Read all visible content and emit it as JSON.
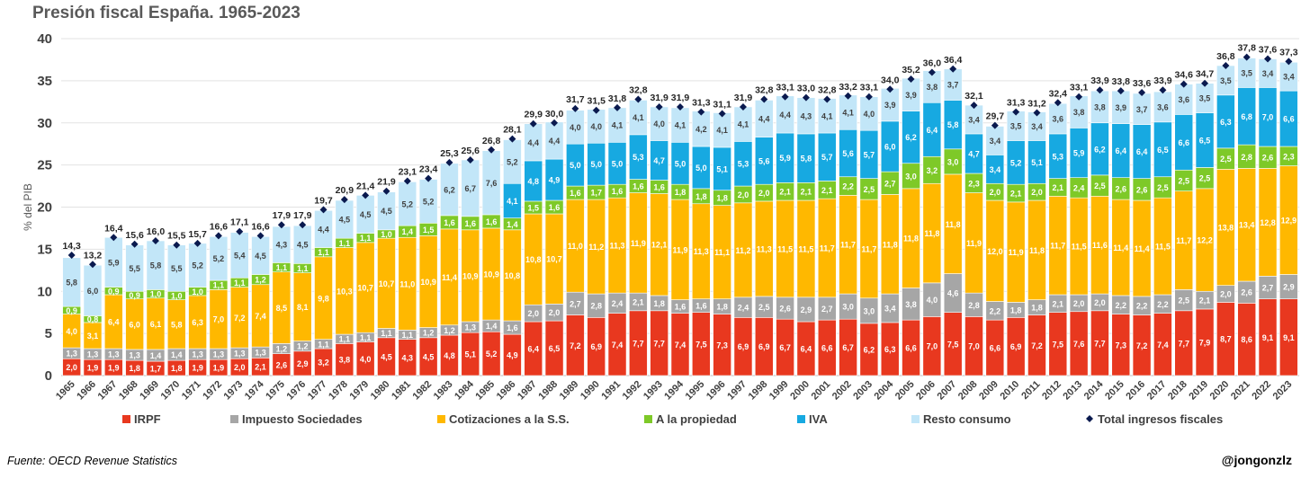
{
  "chart_data": {
    "type": "bar",
    "stacked": true,
    "title": "Presión fiscal España. 1965-2023",
    "ylabel": "% del PIB",
    "xlabel": "",
    "ylim": [
      0,
      40
    ],
    "yticks": [
      0,
      5,
      10,
      15,
      20,
      25,
      30,
      35,
      40
    ],
    "grid": true,
    "legend_position": "bottom",
    "categories": [
      "1965",
      "1966",
      "1967",
      "1968",
      "1969",
      "1970",
      "1971",
      "1972",
      "1973",
      "1974",
      "1975",
      "1976",
      "1977",
      "1978",
      "1979",
      "1980",
      "1981",
      "1982",
      "1983",
      "1984",
      "1985",
      "1986",
      "1987",
      "1988",
      "1989",
      "1990",
      "1991",
      "1992",
      "1993",
      "1994",
      "1995",
      "1996",
      "1997",
      "1998",
      "1999",
      "2000",
      "2001",
      "2002",
      "2003",
      "2004",
      "2005",
      "2006",
      "2007",
      "2008",
      "2009",
      "2010",
      "2011",
      "2012",
      "2013",
      "2014",
      "2015",
      "2016",
      "2017",
      "2018",
      "2019",
      "2020",
      "2021",
      "2022",
      "2023"
    ],
    "series": [
      {
        "name": "IRPF",
        "color": "#e8381f",
        "label_color": "#ffffff",
        "values": [
          2.0,
          1.9,
          1.9,
          1.8,
          1.7,
          1.8,
          1.9,
          1.9,
          2.0,
          2.1,
          2.6,
          2.9,
          3.2,
          3.8,
          4.0,
          4.5,
          4.3,
          4.5,
          4.8,
          5.1,
          5.2,
          4.9,
          6.4,
          6.5,
          7.2,
          6.9,
          7.4,
          7.7,
          7.7,
          7.4,
          7.5,
          7.3,
          6.9,
          6.9,
          6.7,
          6.4,
          6.6,
          6.7,
          6.2,
          6.3,
          6.6,
          7.0,
          7.5,
          7.0,
          6.6,
          6.9,
          7.2,
          7.5,
          7.6,
          7.7,
          7.3,
          7.2,
          7.4,
          7.7,
          7.9,
          8.7,
          8.6,
          9.1,
          9.1
        ]
      },
      {
        "name": "Impuesto Sociedades",
        "color": "#a6a6a6",
        "label_color": "#ffffff",
        "values": [
          1.3,
          1.3,
          1.3,
          1.3,
          1.4,
          1.4,
          1.3,
          1.3,
          1.3,
          1.3,
          1.2,
          1.2,
          1.1,
          1.1,
          1.1,
          1.1,
          1.1,
          1.2,
          1.2,
          1.3,
          1.4,
          1.6,
          2.0,
          2.0,
          2.7,
          2.8,
          2.4,
          2.1,
          1.8,
          1.6,
          1.6,
          1.8,
          2.4,
          2.5,
          2.6,
          2.9,
          2.7,
          3.0,
          3.0,
          3.4,
          3.8,
          4.0,
          4.6,
          2.8,
          2.2,
          1.8,
          1.8,
          2.1,
          2.0,
          2.0,
          2.2,
          2.2,
          2.2,
          2.5,
          2.1,
          2.0,
          2.6,
          2.7,
          2.9
        ]
      },
      {
        "name": "Cotizaciones a la S.S.",
        "color": "#ffb800",
        "label_color": "#ffffff",
        "values": [
          4.0,
          3.1,
          6.4,
          6.0,
          6.1,
          5.8,
          6.3,
          7.0,
          7.2,
          7.4,
          8.5,
          8.1,
          9.8,
          10.3,
          10.7,
          10.7,
          11.0,
          10.9,
          11.4,
          10.9,
          10.9,
          10.8,
          10.8,
          10.7,
          11.0,
          11.2,
          11.3,
          11.9,
          12.1,
          11.9,
          11.3,
          11.1,
          11.2,
          11.3,
          11.5,
          11.5,
          11.7,
          11.7,
          11.7,
          11.8,
          11.8,
          11.8,
          11.8,
          11.9,
          12.0,
          11.9,
          11.8,
          11.7,
          11.5,
          11.6,
          11.4,
          11.4,
          11.5,
          11.7,
          12.2,
          13.8,
          13.4,
          12.8,
          12.9
        ]
      },
      {
        "name": "A la propiedad",
        "color": "#7ec928",
        "label_color": "#ffffff",
        "values": [
          0.9,
          0.8,
          0.9,
          0.9,
          1.0,
          1.0,
          1.0,
          1.1,
          1.1,
          1.2,
          1.1,
          1.1,
          1.1,
          1.1,
          1.1,
          1.0,
          1.4,
          1.5,
          1.6,
          1.6,
          1.6,
          1.4,
          1.5,
          1.6,
          1.6,
          1.7,
          1.6,
          1.6,
          1.6,
          1.8,
          1.8,
          1.8,
          2.0,
          2.0,
          2.1,
          2.1,
          2.1,
          2.2,
          2.5,
          2.7,
          3.0,
          3.2,
          3.0,
          2.3,
          2.0,
          2.1,
          2.0,
          2.1,
          2.4,
          2.5,
          2.6,
          2.6,
          2.5,
          2.5,
          2.5,
          2.5,
          2.8,
          2.6,
          2.3
        ]
      },
      {
        "name": "IVA",
        "color": "#17a9e1",
        "label_color": "#ffffff",
        "values": [
          null,
          null,
          null,
          null,
          null,
          null,
          null,
          null,
          null,
          null,
          null,
          null,
          null,
          null,
          null,
          null,
          null,
          null,
          null,
          null,
          null,
          4.1,
          4.8,
          4.9,
          5.0,
          5.0,
          5.0,
          5.3,
          4.7,
          5.0,
          5.0,
          5.1,
          5.3,
          5.6,
          5.9,
          5.8,
          5.7,
          5.6,
          5.7,
          6.0,
          6.2,
          6.4,
          5.8,
          4.7,
          3.4,
          5.2,
          5.1,
          5.3,
          5.9,
          6.2,
          6.4,
          6.4,
          6.5,
          6.6,
          6.5,
          6.3,
          6.8,
          7.0,
          6.6
        ]
      },
      {
        "name": "Resto consumo",
        "color": "#c2e6f8",
        "label_color": "#404040",
        "values": [
          5.8,
          6.0,
          5.9,
          5.5,
          5.8,
          5.5,
          5.2,
          5.2,
          5.4,
          4.5,
          4.3,
          4.5,
          4.4,
          4.5,
          4.5,
          4.5,
          5.2,
          5.2,
          6.2,
          6.7,
          7.6,
          5.2,
          4.4,
          4.4,
          4.0,
          4.0,
          4.1,
          4.1,
          4.0,
          4.1,
          4.2,
          4.1,
          4.1,
          4.4,
          4.4,
          4.3,
          4.1,
          4.1,
          4.0,
          3.9,
          3.9,
          3.8,
          3.7,
          3.4,
          3.4,
          3.5,
          3.4,
          3.6,
          3.8,
          3.8,
          3.9,
          3.7,
          3.6,
          3.6,
          3.5,
          3.5,
          3.5,
          3.4,
          3.4
        ]
      }
    ],
    "totals": {
      "name": "Total ingresos fiscales",
      "color": "#0a1a4f",
      "values": [
        14.3,
        13.2,
        16.4,
        15.6,
        16.0,
        15.5,
        15.7,
        16.6,
        17.1,
        16.6,
        17.9,
        17.9,
        19.7,
        20.9,
        21.4,
        21.9,
        23.1,
        23.4,
        25.3,
        25.6,
        26.8,
        28.1,
        29.9,
        30.0,
        31.7,
        31.5,
        31.8,
        32.8,
        31.9,
        31.9,
        31.3,
        31.1,
        31.9,
        32.8,
        33.1,
        33.0,
        32.8,
        33.2,
        33.1,
        34.0,
        35.2,
        36.0,
        36.4,
        32.1,
        29.7,
        31.3,
        31.2,
        32.4,
        33.1,
        33.9,
        33.8,
        33.6,
        33.9,
        34.6,
        34.7,
        36.8,
        37.8,
        37.6,
        37.3
      ]
    }
  },
  "footer": {
    "source": "Fuente: OECD Revenue Statistics",
    "credit": "@jongonzlz"
  }
}
